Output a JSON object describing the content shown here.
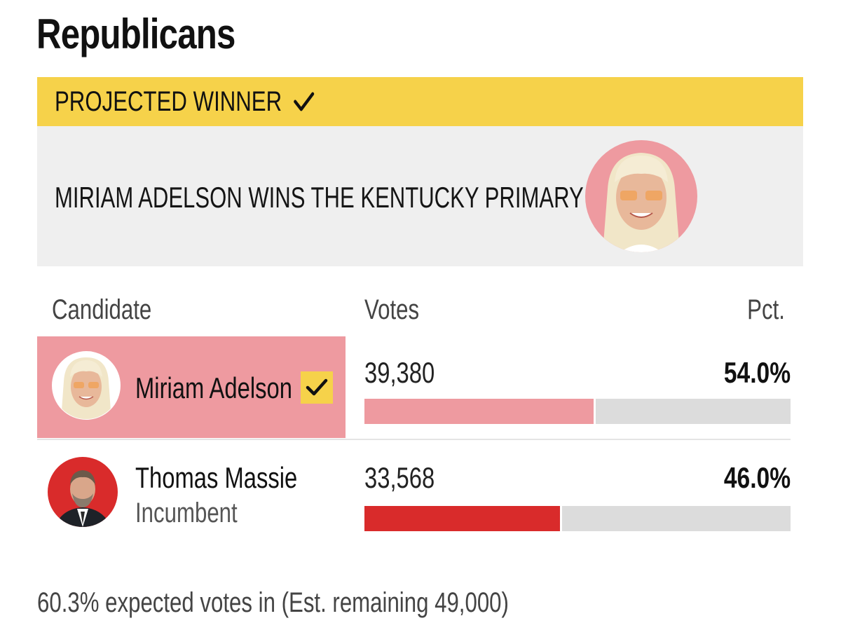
{
  "section": {
    "title": "Republicans"
  },
  "banner": {
    "label": "PROJECTED WINNER",
    "check_icon": "checkmark-icon",
    "color": "#f6d24a"
  },
  "headline": {
    "text": "MIRIAM ADELSON WINS THE KENTUCKY PRIMARY",
    "avatar_icon": "candidate-photo-adelson"
  },
  "table": {
    "headers": {
      "candidate": "Candidate",
      "votes": "Votes",
      "pct": "Pct."
    },
    "rows": [
      {
        "name": "Miriam Adelson",
        "subtitle": "",
        "votes": "39,380",
        "pct": "54.0%",
        "pct_value": 54.0,
        "winner": true,
        "bar_color": "#ee9aa0",
        "avatar_bg": "#ee9aa0",
        "avatar_icon": "candidate-photo-adelson"
      },
      {
        "name": "Thomas Massie",
        "subtitle": "Incumbent",
        "votes": "33,568",
        "pct": "46.0%",
        "pct_value": 46.0,
        "winner": false,
        "bar_color": "#d92b2b",
        "avatar_bg": "#d92b2b",
        "avatar_icon": "candidate-photo-massie"
      }
    ]
  },
  "footer": {
    "text": "60.3% expected votes in (Est. remaining 49,000)"
  }
}
